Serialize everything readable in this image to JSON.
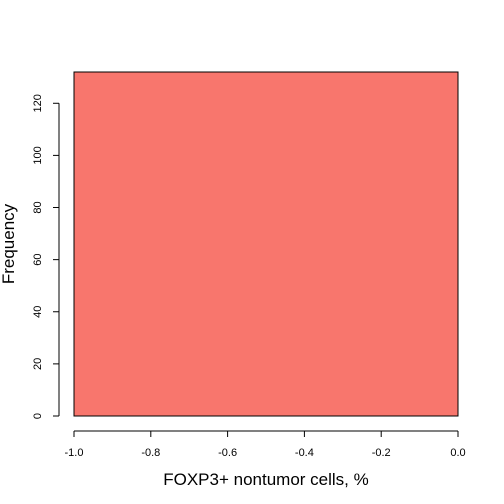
{
  "chart_data": {
    "type": "bar",
    "title": "",
    "xlabel": "FOXP3+ nontumor cells, %",
    "ylabel": "Frequency",
    "bins": [
      {
        "x0": -1.0,
        "x1": 0.0,
        "count": 132
      }
    ],
    "xlim": [
      -1.0,
      0.0
    ],
    "ylim": [
      0,
      132
    ],
    "xticks": [
      -1.0,
      -0.8,
      -0.6,
      -0.4,
      -0.2,
      0.0
    ],
    "xtick_labels": [
      "-1.0",
      "-0.8",
      "-0.6",
      "-0.4",
      "-0.2",
      "0.0"
    ],
    "yticks": [
      0,
      20,
      40,
      60,
      80,
      100,
      120
    ],
    "ytick_labels": [
      "0",
      "20",
      "40",
      "60",
      "80",
      "100",
      "120"
    ],
    "bar_color": "#F8766D",
    "grid": false,
    "legend": "none"
  }
}
